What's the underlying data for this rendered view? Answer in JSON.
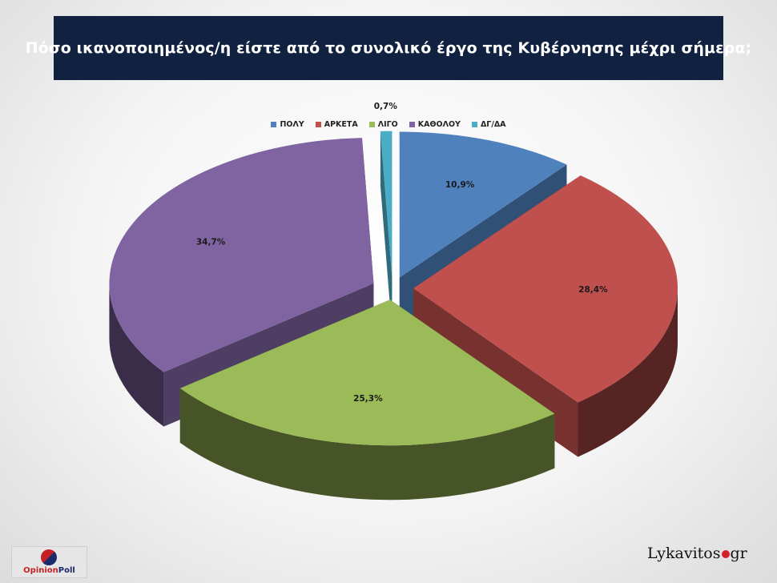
{
  "header": {
    "title": "Πόσο ικανοποιημένος/η είστε από το συνολικό έργο της Κυβέρνησης μέχρι σήμερα;"
  },
  "chart_data": {
    "type": "pie",
    "title": "Πόσο ικανοποιημένος/η είστε από το συνολικό έργο της Κυβέρνησης μέχρι σήμερα;",
    "legend_position": "top",
    "exploded": true,
    "three_d": true,
    "slices": [
      {
        "label": "ΠΟΛΥ",
        "value": 10.9,
        "display": "10,9%",
        "color": "#4f81bd"
      },
      {
        "label": "ΑΡΚΕΤΑ",
        "value": 28.4,
        "display": "28,4%",
        "color": "#c0504d"
      },
      {
        "label": "ΛΙΓΟ",
        "value": 25.3,
        "display": "25,3%",
        "color": "#9bbb59"
      },
      {
        "label": "ΚΑΘΟΛΟΥ",
        "value": 34.7,
        "display": "34,7%",
        "color": "#8064a2"
      },
      {
        "label": "ΔΓ/ΔΑ",
        "value": 0.7,
        "display": "0,7%",
        "color": "#4bacc6"
      }
    ]
  },
  "footer": {
    "left_logo": {
      "part1": "Opinion",
      "part2": "Poll"
    },
    "right_logo": {
      "part1": "Lykavitos",
      "part2": "gr"
    }
  }
}
